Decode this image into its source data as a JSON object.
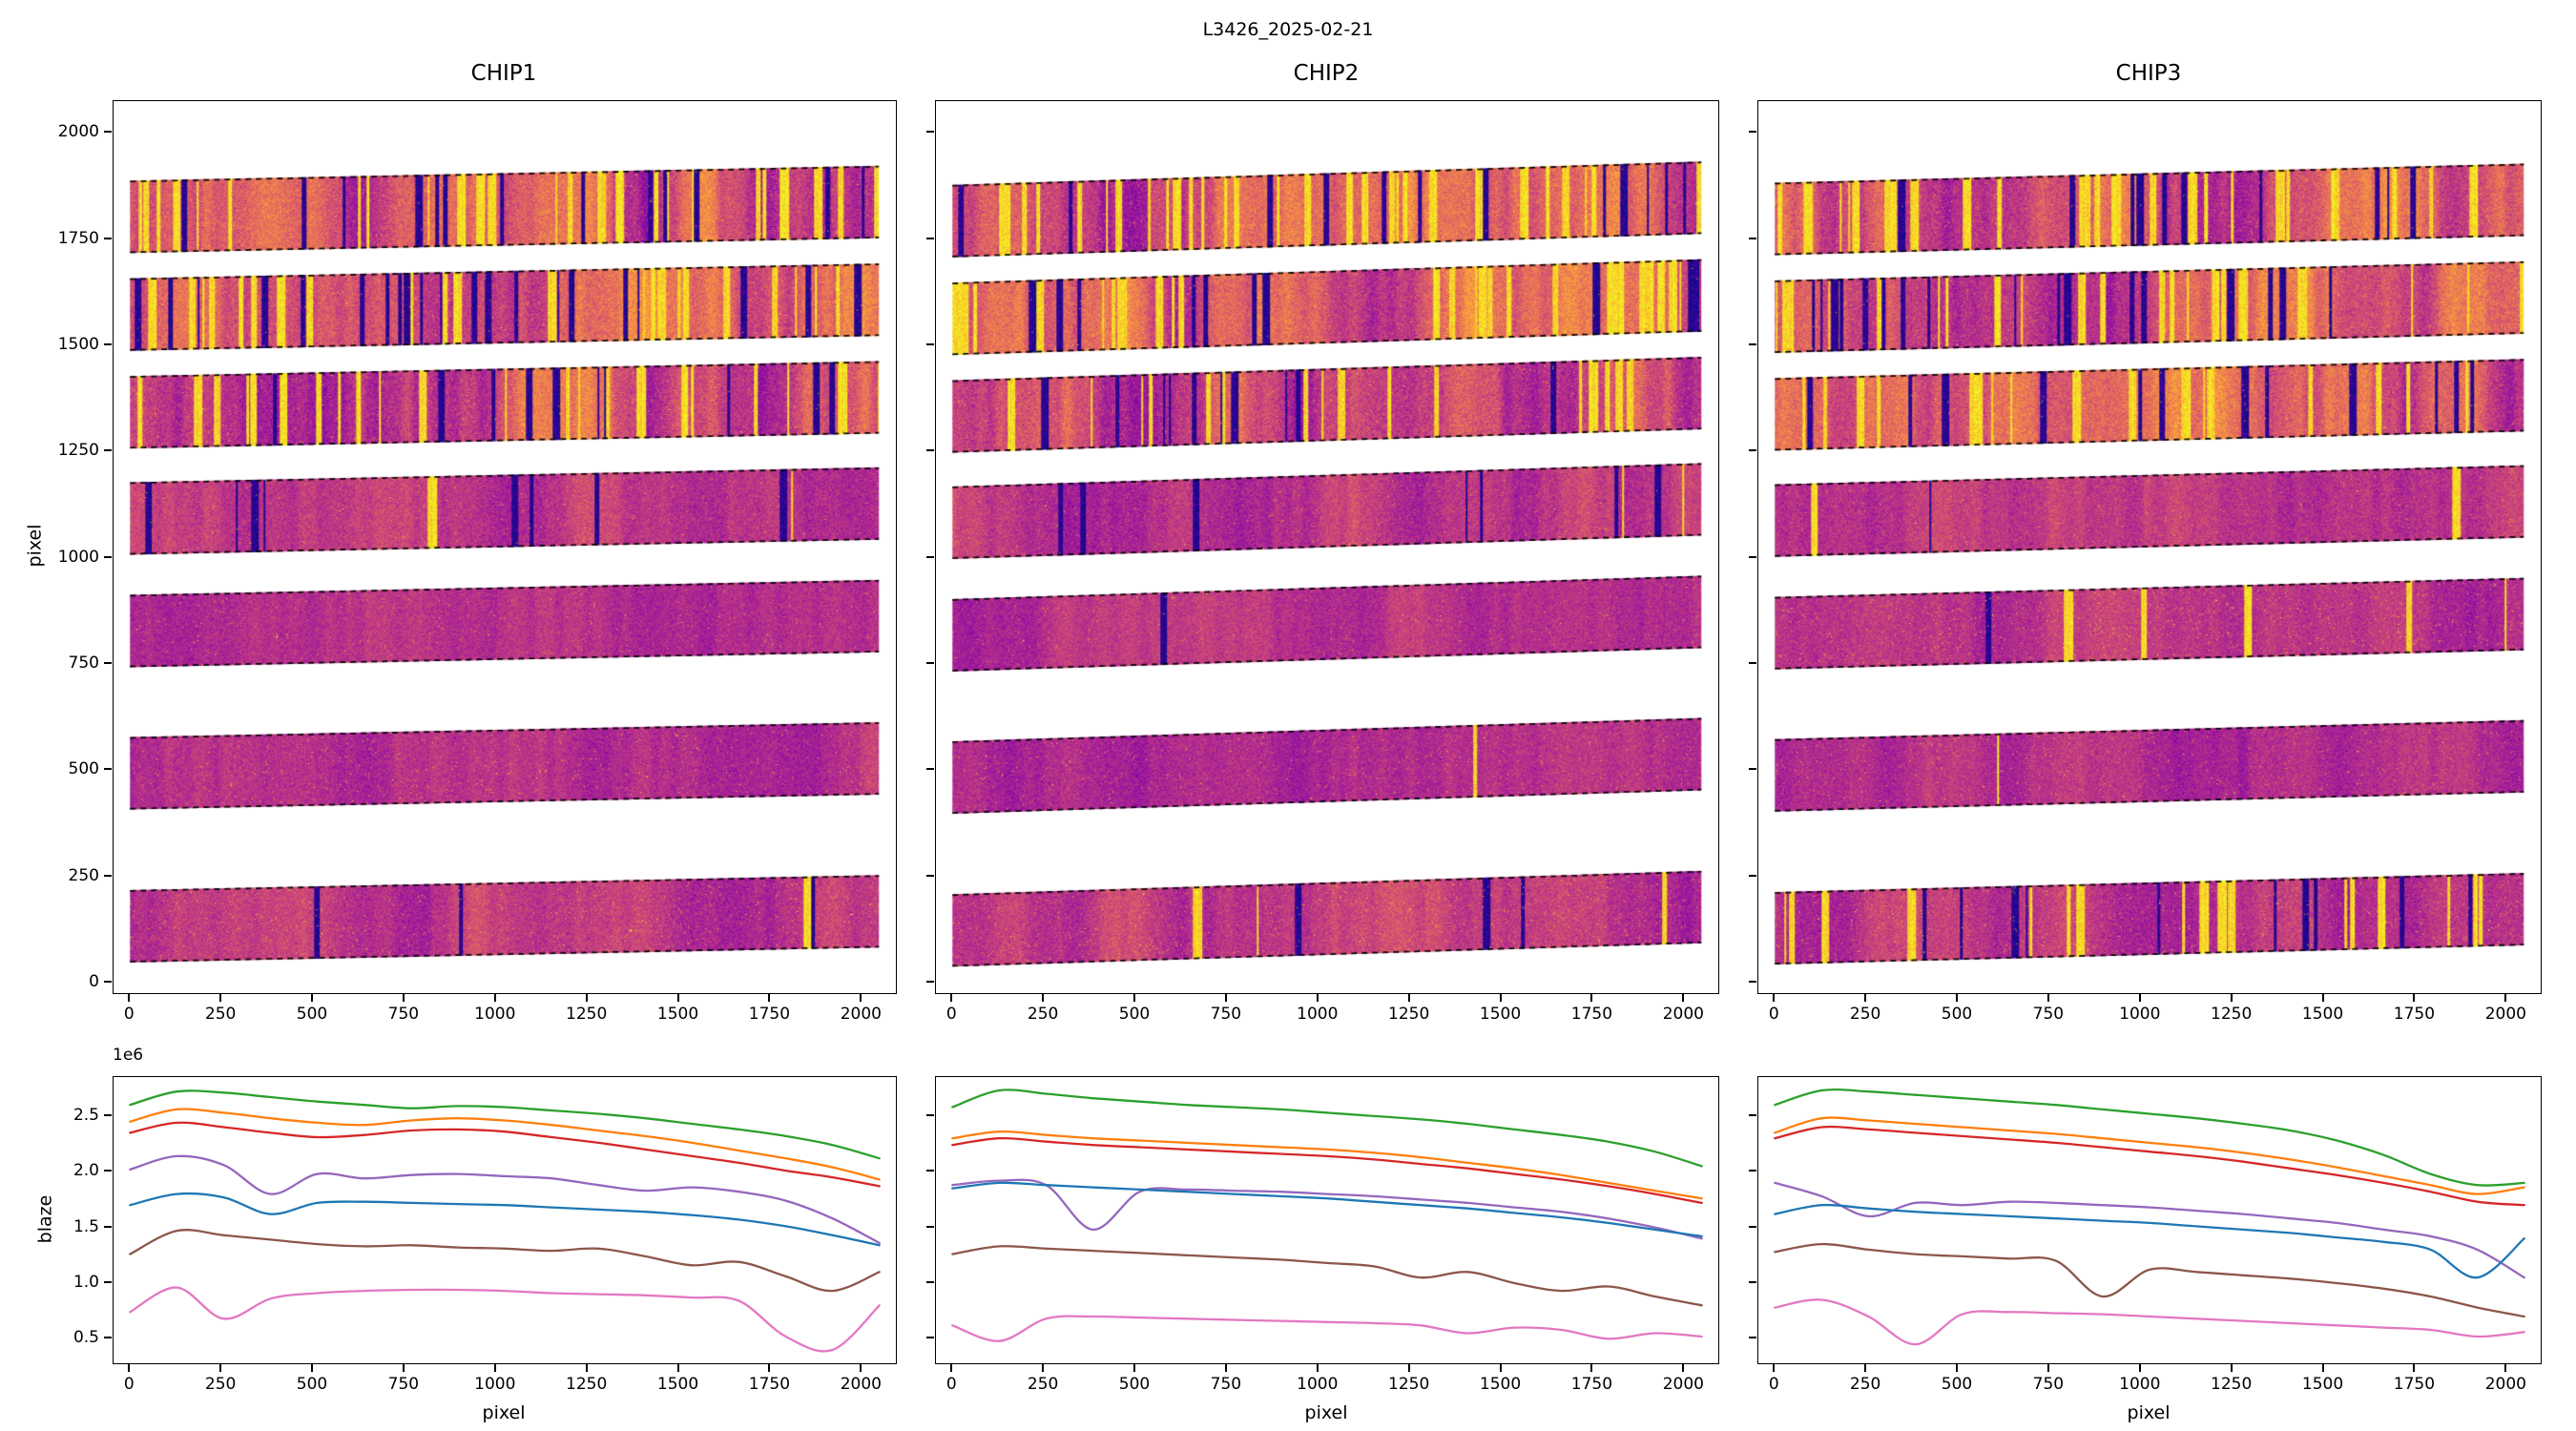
{
  "figure": {
    "title": "L3426_2025-02-21"
  },
  "chips": [
    {
      "name": "CHIP1"
    },
    {
      "name": "CHIP2"
    },
    {
      "name": "CHIP3"
    }
  ],
  "top_axes": {
    "ylabel": "pixel",
    "xticks": [
      0,
      250,
      500,
      750,
      1000,
      1250,
      1500,
      1750,
      2000
    ],
    "yticks": [
      0,
      250,
      500,
      750,
      1000,
      1250,
      1500,
      1750,
      2000
    ],
    "xlim": [
      -45,
      2093
    ],
    "ylim": [
      -25,
      2075
    ],
    "orders": {
      "centers": [
        1820,
        1590,
        1360,
        1110,
        845,
        510,
        150
      ],
      "half_height": 85,
      "slopes": [
        35,
        55,
        45
      ],
      "x_start": 0,
      "x_end": 2048
    }
  },
  "bottom_axes": {
    "ylabel": "blaze",
    "xlabel": "pixel",
    "offset_label": "1e6",
    "xticks": [
      0,
      250,
      500,
      750,
      1000,
      1250,
      1500,
      1750,
      2000
    ],
    "yticks": [
      0.5,
      1.0,
      1.5,
      2.0,
      2.5
    ],
    "xlim": [
      -45,
      2093
    ],
    "ylim": [
      0.28,
      2.85
    ]
  },
  "chart_data": [
    {
      "chip": "CHIP1",
      "type": "line",
      "xlabel": "pixel",
      "ylabel": "blaze (1e6)",
      "x": [
        0,
        128,
        256,
        384,
        512,
        640,
        768,
        896,
        1024,
        1152,
        1280,
        1408,
        1536,
        1664,
        1792,
        1920,
        2048
      ],
      "series": [
        {
          "name": "green",
          "color": "#2ca02c",
          "values": [
            2.6,
            2.72,
            2.71,
            2.67,
            2.63,
            2.6,
            2.57,
            2.59,
            2.58,
            2.55,
            2.52,
            2.48,
            2.43,
            2.38,
            2.32,
            2.24,
            2.12
          ]
        },
        {
          "name": "orange",
          "color": "#ff7f0e",
          "values": [
            2.45,
            2.56,
            2.53,
            2.48,
            2.44,
            2.42,
            2.46,
            2.48,
            2.46,
            2.42,
            2.37,
            2.32,
            2.26,
            2.19,
            2.12,
            2.04,
            1.93
          ]
        },
        {
          "name": "red",
          "color": "#d62728",
          "values": [
            2.35,
            2.44,
            2.4,
            2.35,
            2.31,
            2.33,
            2.37,
            2.38,
            2.36,
            2.31,
            2.26,
            2.2,
            2.14,
            2.08,
            2.01,
            1.95,
            1.87
          ]
        },
        {
          "name": "purple",
          "color": "#9467bd",
          "values": [
            2.02,
            2.14,
            2.06,
            1.8,
            1.98,
            1.94,
            1.97,
            1.98,
            1.96,
            1.94,
            1.88,
            1.83,
            1.86,
            1.82,
            1.74,
            1.58,
            1.36
          ]
        },
        {
          "name": "blue",
          "color": "#1f77b4",
          "values": [
            1.7,
            1.8,
            1.77,
            1.62,
            1.72,
            1.73,
            1.72,
            1.71,
            1.7,
            1.68,
            1.66,
            1.64,
            1.61,
            1.57,
            1.51,
            1.43,
            1.34
          ]
        },
        {
          "name": "brown",
          "color": "#8c564b",
          "values": [
            1.26,
            1.47,
            1.43,
            1.39,
            1.35,
            1.33,
            1.34,
            1.32,
            1.31,
            1.29,
            1.31,
            1.24,
            1.16,
            1.19,
            1.06,
            0.93,
            1.1
          ]
        },
        {
          "name": "pink",
          "color": "#e377c2",
          "values": [
            0.74,
            0.96,
            0.68,
            0.86,
            0.91,
            0.93,
            0.94,
            0.94,
            0.93,
            0.91,
            0.9,
            0.89,
            0.87,
            0.84,
            0.52,
            0.4,
            0.8
          ]
        }
      ]
    },
    {
      "chip": "CHIP2",
      "type": "line",
      "xlabel": "pixel",
      "ylabel": "blaze (1e6)",
      "x": [
        0,
        128,
        256,
        384,
        512,
        640,
        768,
        896,
        1024,
        1152,
        1280,
        1408,
        1536,
        1664,
        1792,
        1920,
        2048
      ],
      "series": [
        {
          "name": "green",
          "color": "#2ca02c",
          "values": [
            2.58,
            2.73,
            2.7,
            2.66,
            2.63,
            2.6,
            2.58,
            2.56,
            2.53,
            2.5,
            2.47,
            2.43,
            2.38,
            2.33,
            2.27,
            2.18,
            2.05
          ]
        },
        {
          "name": "orange",
          "color": "#ff7f0e",
          "values": [
            2.3,
            2.36,
            2.33,
            2.3,
            2.28,
            2.26,
            2.24,
            2.22,
            2.2,
            2.17,
            2.13,
            2.08,
            2.03,
            1.97,
            1.9,
            1.83,
            1.76
          ]
        },
        {
          "name": "red",
          "color": "#d62728",
          "values": [
            2.24,
            2.3,
            2.27,
            2.24,
            2.22,
            2.2,
            2.18,
            2.16,
            2.14,
            2.11,
            2.07,
            2.03,
            1.98,
            1.93,
            1.87,
            1.8,
            1.72
          ]
        },
        {
          "name": "purple",
          "color": "#9467bd",
          "values": [
            1.88,
            1.92,
            1.88,
            1.48,
            1.82,
            1.84,
            1.83,
            1.82,
            1.8,
            1.78,
            1.75,
            1.72,
            1.68,
            1.64,
            1.58,
            1.5,
            1.4
          ]
        },
        {
          "name": "blue",
          "color": "#1f77b4",
          "values": [
            1.85,
            1.9,
            1.88,
            1.86,
            1.84,
            1.82,
            1.8,
            1.78,
            1.76,
            1.73,
            1.7,
            1.67,
            1.63,
            1.59,
            1.54,
            1.48,
            1.42
          ]
        },
        {
          "name": "brown",
          "color": "#8c564b",
          "values": [
            1.26,
            1.33,
            1.31,
            1.29,
            1.27,
            1.25,
            1.23,
            1.21,
            1.18,
            1.15,
            1.05,
            1.1,
            1.0,
            0.93,
            0.97,
            0.88,
            0.8
          ]
        },
        {
          "name": "pink",
          "color": "#e377c2",
          "values": [
            0.62,
            0.48,
            0.68,
            0.7,
            0.69,
            0.68,
            0.67,
            0.66,
            0.65,
            0.64,
            0.62,
            0.55,
            0.6,
            0.58,
            0.5,
            0.55,
            0.52
          ]
        }
      ]
    },
    {
      "chip": "CHIP3",
      "type": "line",
      "xlabel": "pixel",
      "ylabel": "blaze (1e6)",
      "x": [
        0,
        128,
        256,
        384,
        512,
        640,
        768,
        896,
        1024,
        1152,
        1280,
        1408,
        1536,
        1664,
        1792,
        1920,
        2048
      ],
      "series": [
        {
          "name": "green",
          "color": "#2ca02c",
          "values": [
            2.6,
            2.73,
            2.72,
            2.69,
            2.66,
            2.63,
            2.6,
            2.56,
            2.52,
            2.48,
            2.43,
            2.37,
            2.28,
            2.15,
            1.98,
            1.88,
            1.9
          ]
        },
        {
          "name": "orange",
          "color": "#ff7f0e",
          "values": [
            2.35,
            2.48,
            2.46,
            2.43,
            2.4,
            2.37,
            2.34,
            2.3,
            2.26,
            2.22,
            2.17,
            2.11,
            2.04,
            1.96,
            1.88,
            1.8,
            1.86
          ]
        },
        {
          "name": "red",
          "color": "#d62728",
          "values": [
            2.3,
            2.4,
            2.38,
            2.35,
            2.32,
            2.29,
            2.26,
            2.22,
            2.18,
            2.14,
            2.09,
            2.03,
            1.97,
            1.9,
            1.82,
            1.73,
            1.7
          ]
        },
        {
          "name": "purple",
          "color": "#9467bd",
          "values": [
            1.9,
            1.78,
            1.6,
            1.72,
            1.7,
            1.73,
            1.72,
            1.7,
            1.68,
            1.65,
            1.62,
            1.58,
            1.54,
            1.48,
            1.42,
            1.3,
            1.05
          ]
        },
        {
          "name": "blue",
          "color": "#1f77b4",
          "values": [
            1.62,
            1.7,
            1.67,
            1.64,
            1.62,
            1.6,
            1.58,
            1.56,
            1.54,
            1.51,
            1.48,
            1.45,
            1.41,
            1.37,
            1.3,
            1.05,
            1.4
          ]
        },
        {
          "name": "brown",
          "color": "#8c564b",
          "values": [
            1.28,
            1.35,
            1.3,
            1.26,
            1.24,
            1.22,
            1.2,
            0.88,
            1.12,
            1.1,
            1.07,
            1.04,
            1.0,
            0.95,
            0.88,
            0.78,
            0.7
          ]
        },
        {
          "name": "pink",
          "color": "#e377c2",
          "values": [
            0.78,
            0.85,
            0.7,
            0.45,
            0.72,
            0.74,
            0.73,
            0.72,
            0.7,
            0.68,
            0.66,
            0.64,
            0.62,
            0.6,
            0.58,
            0.52,
            0.56
          ]
        }
      ]
    }
  ]
}
